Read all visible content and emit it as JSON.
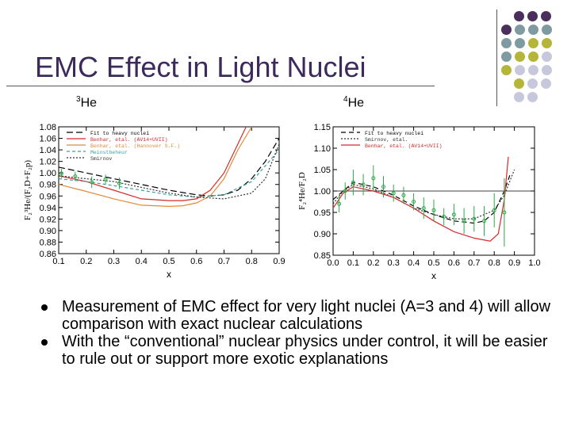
{
  "slide": {
    "title": "EMC Effect in Light Nuclei",
    "bullets": [
      "Measurement of EMC effect for very light nuclei (A=3 and 4) will allow comparison with exact nuclear calculations",
      "With the “conventional” nuclear physics under control, it will be easier to rule out or support more exotic explanations"
    ],
    "labels": {
      "he3_sup": "3",
      "he3_text": "He",
      "he4_sup": "4",
      "he4_text": "He"
    }
  },
  "colors": {
    "title": "#3d2a5c",
    "purple": "#4a2e5c",
    "teal": "#7f9aa0",
    "olive": "#b5b53a",
    "lavender": "#c8c8dc"
  },
  "chart_data": [
    {
      "type": "line",
      "title": "",
      "xlabel": "x",
      "ylabel": "F₂³He/(F₂D+F₂p)",
      "xlim": [
        0.1,
        0.9
      ],
      "ylim": [
        0.86,
        1.08
      ],
      "xticks": [
        "0.1",
        "0.2",
        "0.3",
        "0.4",
        "0.5",
        "0.6",
        "0.7",
        "0.8",
        "0.9"
      ],
      "yticks": [
        "0.86",
        "0.88",
        "0.90",
        "0.92",
        "0.94",
        "0.96",
        "0.98",
        "1.00",
        "1.02",
        "1.04",
        "1.06",
        "1.08"
      ],
      "legend": [
        "Fit to heavy nuclei",
        "Benhar, etal. (AV14+UVII)",
        "Benhar, etal. (Hannover S.F.)",
        "Meinstbeheur",
        "Smirnov"
      ],
      "series": [
        {
          "name": "Fit to heavy nuclei",
          "color": "#000000",
          "dash": "8,4",
          "x": [
            0.1,
            0.2,
            0.3,
            0.4,
            0.5,
            0.6,
            0.65,
            0.7,
            0.75,
            0.8,
            0.85,
            0.9
          ],
          "y": [
            1.01,
            1.0,
            0.99,
            0.98,
            0.97,
            0.962,
            0.96,
            0.962,
            0.97,
            0.99,
            1.02,
            1.06
          ]
        },
        {
          "name": "Benhar, etal. (AV14+UVII)",
          "color": "#d42a2a",
          "dash": "",
          "x": [
            0.1,
            0.2,
            0.3,
            0.4,
            0.5,
            0.55,
            0.6,
            0.65,
            0.7,
            0.75,
            0.78
          ],
          "y": [
            0.995,
            0.985,
            0.97,
            0.955,
            0.952,
            0.952,
            0.955,
            0.97,
            1.0,
            1.05,
            1.08
          ]
        },
        {
          "name": "Benhar, etal. (Hannover S.F.)",
          "color": "#e08a3a",
          "dash": "",
          "x": [
            0.1,
            0.2,
            0.3,
            0.4,
            0.5,
            0.55,
            0.6,
            0.65,
            0.7,
            0.75,
            0.8
          ],
          "y": [
            0.98,
            0.968,
            0.955,
            0.944,
            0.942,
            0.943,
            0.948,
            0.96,
            0.99,
            1.04,
            1.08
          ]
        },
        {
          "name": "Meinstbeheur",
          "color": "#3aa09a",
          "dash": "4,3",
          "x": [
            0.1,
            0.2,
            0.3,
            0.4,
            0.5,
            0.6,
            0.7,
            0.8,
            0.9
          ],
          "y": [
            0.99,
            0.985,
            0.978,
            0.97,
            0.962,
            0.958,
            0.962,
            0.985,
            1.04
          ]
        },
        {
          "name": "Smirnov",
          "color": "#333333",
          "dash": "2,2",
          "x": [
            0.1,
            0.2,
            0.3,
            0.4,
            0.5,
            0.6,
            0.7,
            0.8,
            0.85,
            0.9
          ],
          "y": [
            0.995,
            0.99,
            0.985,
            0.975,
            0.965,
            0.958,
            0.955,
            0.965,
            0.99,
            1.05
          ]
        }
      ],
      "points": {
        "x": [
          0.11,
          0.16,
          0.22,
          0.27,
          0.32
        ],
        "y": [
          0.999,
          0.994,
          0.984,
          0.989,
          0.982
        ],
        "err": [
          0.008,
          0.008,
          0.01,
          0.008,
          0.01
        ]
      }
    },
    {
      "type": "line",
      "title": "",
      "xlabel": "x",
      "ylabel": "F₂⁴He/F₂D",
      "xlim": [
        0.0,
        1.0
      ],
      "ylim": [
        0.85,
        1.15
      ],
      "xticks": [
        "0.0",
        "0.1",
        "0.2",
        "0.3",
        "0.4",
        "0.5",
        "0.6",
        "0.7",
        "0.8",
        "0.9",
        "1.0"
      ],
      "yticks": [
        "0.85",
        "0.90",
        "0.95",
        "1.00",
        "1.05",
        "1.10",
        "1.15"
      ],
      "legend": [
        "Fit to heavy nuclei",
        "Smirnov, etal.",
        "Benhar, etal. (AV14+UVII)"
      ],
      "series": [
        {
          "name": "Fit to heavy nuclei",
          "color": "#000000",
          "dash": "6,4",
          "x": [
            0.0,
            0.05,
            0.1,
            0.2,
            0.3,
            0.4,
            0.5,
            0.6,
            0.7,
            0.75,
            0.8,
            0.85,
            0.88
          ],
          "y": [
            0.98,
            1.0,
            1.02,
            1.01,
            0.99,
            0.965,
            0.945,
            0.93,
            0.925,
            0.93,
            0.95,
            1.0,
            1.04
          ]
        },
        {
          "name": "Smirnov, etal.",
          "color": "#333333",
          "dash": "2,2",
          "x": [
            0.0,
            0.05,
            0.1,
            0.2,
            0.3,
            0.4,
            0.5,
            0.6,
            0.7,
            0.8,
            0.85,
            0.9
          ],
          "y": [
            0.97,
            1.0,
            1.015,
            1.005,
            0.985,
            0.96,
            0.945,
            0.935,
            0.935,
            0.955,
            0.99,
            1.05
          ]
        },
        {
          "name": "Benhar, etal. (AV14+UVII)",
          "color": "#d42a2a",
          "dash": "",
          "x": [
            0.0,
            0.05,
            0.1,
            0.2,
            0.3,
            0.4,
            0.5,
            0.6,
            0.7,
            0.78,
            0.82,
            0.85,
            0.87
          ],
          "y": [
            0.96,
            0.995,
            1.01,
            1.0,
            0.985,
            0.96,
            0.93,
            0.905,
            0.89,
            0.883,
            0.9,
            0.98,
            1.08
          ]
        }
      ],
      "hline": 1.0,
      "points": {
        "x": [
          0.03,
          0.06,
          0.1,
          0.15,
          0.2,
          0.25,
          0.3,
          0.35,
          0.4,
          0.45,
          0.5,
          0.55,
          0.6,
          0.65,
          0.7,
          0.75,
          0.8,
          0.85
        ],
        "y": [
          0.97,
          1.0,
          1.02,
          1.015,
          1.03,
          1.01,
          0.995,
          0.99,
          0.975,
          0.96,
          0.955,
          0.94,
          0.945,
          0.93,
          0.935,
          0.93,
          0.955,
          0.95
        ],
        "err": [
          0.02,
          0.02,
          0.03,
          0.025,
          0.03,
          0.025,
          0.02,
          0.02,
          0.02,
          0.025,
          0.025,
          0.02,
          0.025,
          0.03,
          0.03,
          0.035,
          0.04,
          0.08
        ]
      }
    }
  ]
}
